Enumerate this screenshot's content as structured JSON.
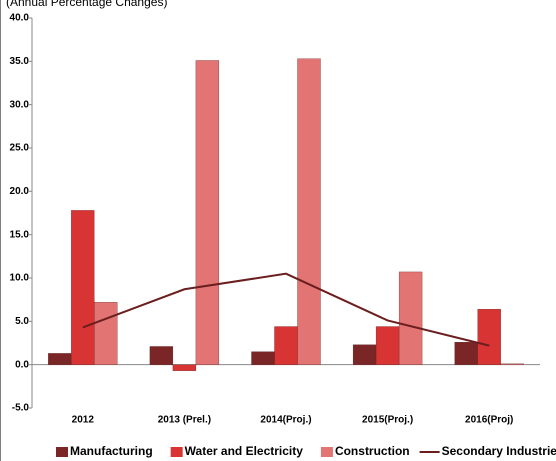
{
  "chart_data": {
    "type": "bar",
    "subtitle": "(Annual Percentage Changes)",
    "categories": [
      "2012",
      "2013 (Prel.)",
      "2014(Proj.)",
      "2015(Proj.)",
      "2016(Proj)"
    ],
    "series": [
      {
        "name": "Manufacturing",
        "type": "bar",
        "color": "#7a2626",
        "values": [
          1.3,
          2.1,
          1.5,
          2.3,
          2.6
        ]
      },
      {
        "name": "Water and Electricity",
        "type": "bar",
        "color": "#d93434",
        "values": [
          17.8,
          -0.7,
          4.4,
          4.4,
          6.4
        ]
      },
      {
        "name": "Construction",
        "type": "bar",
        "color": "#e27474",
        "values": [
          7.2,
          35.1,
          35.3,
          10.7,
          0.1
        ]
      },
      {
        "name": "Secondary Industries",
        "type": "line",
        "color": "#6b1e1e",
        "values": [
          4.3,
          8.7,
          10.5,
          5.1,
          2.2
        ]
      }
    ],
    "ylim": [
      -5,
      40
    ],
    "yticks": [
      {
        "value": -5,
        "label": "-5.0"
      },
      {
        "value": 0,
        "label": "0.0"
      },
      {
        "value": 5,
        "label": "5.0"
      },
      {
        "value": 10,
        "label": "10.0"
      },
      {
        "value": 15,
        "label": "15.0"
      },
      {
        "value": 20,
        "label": "20.0"
      },
      {
        "value": 25,
        "label": "25.0"
      },
      {
        "value": 30,
        "label": "30.0"
      },
      {
        "value": 35,
        "label": "35.0"
      },
      {
        "value": 40,
        "label": "40.0"
      }
    ],
    "legend": "bottom"
  }
}
